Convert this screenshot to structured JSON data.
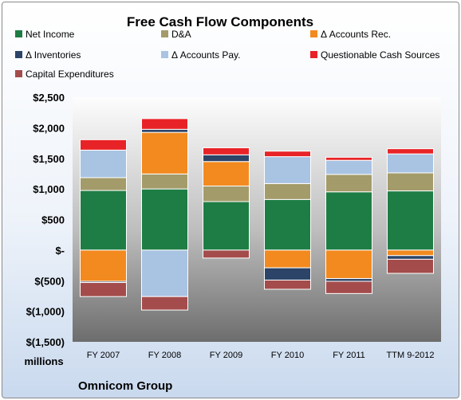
{
  "chart_data": {
    "type": "bar",
    "stacked": true,
    "title": "Free Cash Flow Components",
    "categories": [
      "FY 2007",
      "FY 2008",
      "FY 2009",
      "FY 2010",
      "FY 2011",
      "TTM 9-2012"
    ],
    "series": [
      {
        "name": "Net Income",
        "color": "#1e7d44",
        "values": [
          975,
          1000,
          793,
          828,
          953,
          968
        ]
      },
      {
        "name": "D&A",
        "color": "#a39b6a",
        "values": [
          210,
          245,
          255,
          260,
          285,
          295
        ]
      },
      {
        "name": "Δ Accounts Rec.",
        "color": "#f28a1f",
        "values": [
          -510,
          680,
          400,
          -290,
          -465,
          -90
        ]
      },
      {
        "name": "Δ Inventories",
        "color": "#2b4468",
        "values": [
          -20,
          50,
          110,
          -200,
          -45,
          -60
        ]
      },
      {
        "name": "Δ Accounts Pay.",
        "color": "#a9c3e3",
        "values": [
          450,
          -760,
          0,
          440,
          230,
          310
        ]
      },
      {
        "name": "Questionable Cash Sources",
        "color": "#e82327",
        "values": [
          170,
          175,
          115,
          90,
          50,
          85
        ]
      },
      {
        "name": "Capital Expenditures",
        "color": "#a44c4c",
        "values": [
          -230,
          -220,
          -130,
          -150,
          -200,
          -230
        ]
      }
    ],
    "yticks": [
      "$2,500",
      "$2,000",
      "$1,500",
      "$1,000",
      "$500",
      "$-",
      "$(500)",
      "$(1,000)",
      "$(1,500)"
    ],
    "ylim": [
      -1500,
      2500
    ],
    "ylabel": "millions",
    "legend_position": "top",
    "grid": false
  },
  "company": "Omnicom Group"
}
